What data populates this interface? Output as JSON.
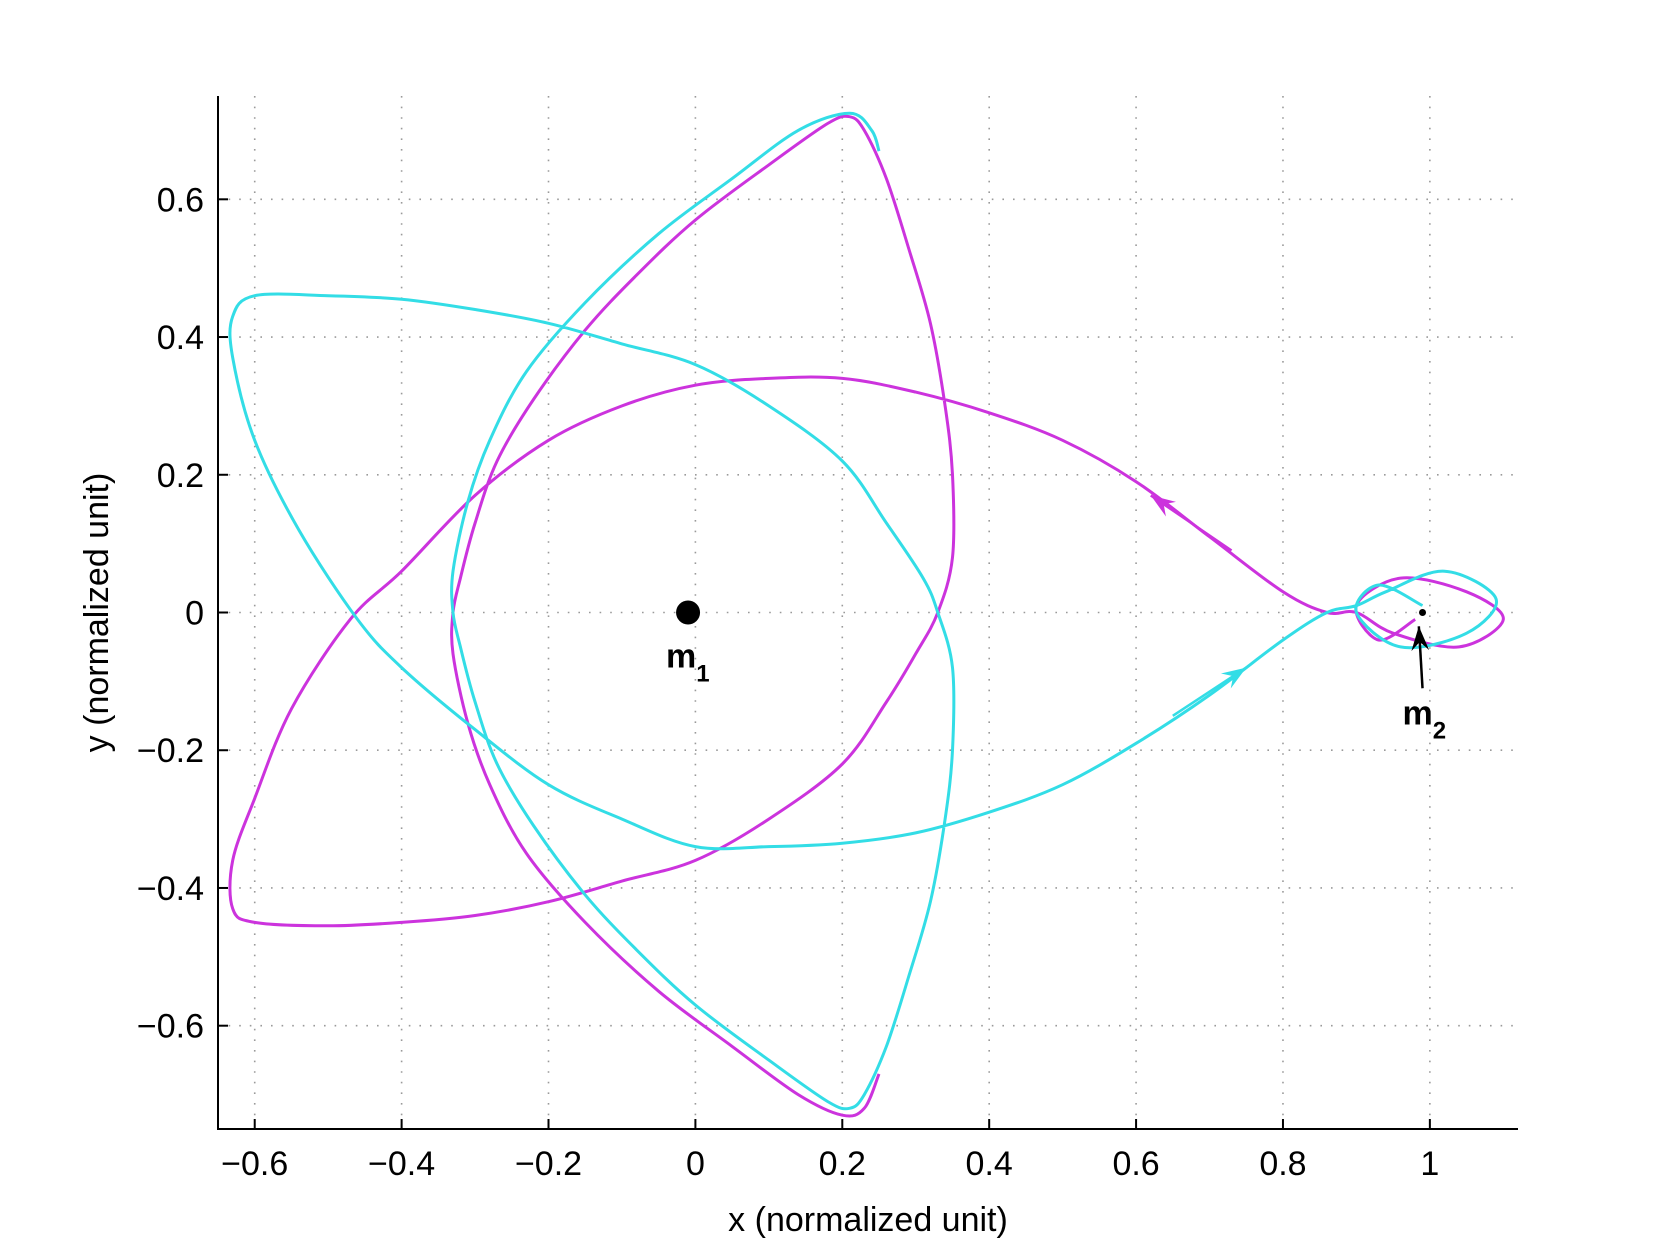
{
  "chart_data": {
    "type": "line",
    "title": "",
    "xlabel": "x (normalized unit)",
    "ylabel": "y (normalized unit)",
    "xlim": [
      -0.65,
      1.12
    ],
    "ylim": [
      -0.75,
      0.75
    ],
    "grid": true,
    "x_ticks": [
      -0.6,
      -0.4,
      -0.2,
      0,
      0.2,
      0.4,
      0.6,
      0.8,
      1
    ],
    "x_tick_labels": [
      "−0.6",
      "−0.4",
      "−0.2",
      "0",
      "0.2",
      "0.4",
      "0.6",
      "0.8",
      "1"
    ],
    "y_ticks": [
      0.6,
      0.4,
      0.2,
      0,
      -0.2,
      -0.4,
      -0.6
    ],
    "y_tick_labels": [
      "0.6",
      "0.4",
      "0.2",
      "0",
      "−0.2",
      "−0.4",
      "−0.6"
    ],
    "series": [
      {
        "color": "#cc33dd",
        "points": [
          [
            0.98,
            -0.01
          ],
          [
            0.93,
            -0.04
          ],
          [
            0.9,
            0.01
          ],
          [
            0.96,
            0.05
          ],
          [
            1.05,
            0.03
          ],
          [
            1.1,
            -0.01
          ],
          [
            1.04,
            -0.05
          ],
          [
            0.95,
            -0.03
          ],
          [
            0.9,
            0.0
          ],
          [
            0.86,
            0.0
          ],
          [
            0.8,
            0.03
          ],
          [
            0.7,
            0.11
          ],
          [
            0.6,
            0.19
          ],
          [
            0.5,
            0.25
          ],
          [
            0.4,
            0.29
          ],
          [
            0.3,
            0.32
          ],
          [
            0.2,
            0.34
          ],
          [
            0.1,
            0.34
          ],
          [
            0.0,
            0.33
          ],
          [
            -0.1,
            0.3
          ],
          [
            -0.2,
            0.25
          ],
          [
            -0.3,
            0.17
          ],
          [
            -0.4,
            0.06
          ],
          [
            -0.47,
            -0.01
          ],
          [
            -0.55,
            -0.14
          ],
          [
            -0.6,
            -0.27
          ],
          [
            -0.63,
            -0.36
          ],
          [
            -0.63,
            -0.43
          ],
          [
            -0.6,
            -0.45
          ],
          [
            -0.5,
            -0.455
          ],
          [
            -0.4,
            -0.45
          ],
          [
            -0.3,
            -0.44
          ],
          [
            -0.2,
            -0.42
          ],
          [
            -0.1,
            -0.39
          ],
          [
            0.0,
            -0.36
          ],
          [
            0.1,
            -0.3
          ],
          [
            0.2,
            -0.22
          ],
          [
            0.26,
            -0.13
          ],
          [
            0.3,
            -0.06
          ],
          [
            0.33,
            0.0
          ],
          [
            0.35,
            0.08
          ],
          [
            0.35,
            0.2
          ],
          [
            0.34,
            0.3
          ],
          [
            0.32,
            0.42
          ],
          [
            0.29,
            0.53
          ],
          [
            0.26,
            0.63
          ],
          [
            0.23,
            0.7
          ],
          [
            0.21,
            0.72
          ],
          [
            0.18,
            0.71
          ],
          [
            0.1,
            0.65
          ],
          [
            0.0,
            0.57
          ],
          [
            -0.08,
            0.49
          ],
          [
            -0.15,
            0.41
          ],
          [
            -0.22,
            0.31
          ],
          [
            -0.27,
            0.22
          ],
          [
            -0.3,
            0.13
          ],
          [
            -0.32,
            0.05
          ],
          [
            -0.33,
            0.0
          ],
          [
            -0.33,
            -0.06
          ],
          [
            -0.31,
            -0.16
          ],
          [
            -0.28,
            -0.25
          ],
          [
            -0.23,
            -0.35
          ],
          [
            -0.15,
            -0.45
          ],
          [
            -0.05,
            -0.55
          ],
          [
            0.05,
            -0.63
          ],
          [
            0.14,
            -0.7
          ],
          [
            0.2,
            -0.73
          ],
          [
            0.23,
            -0.72
          ],
          [
            0.25,
            -0.67
          ]
        ]
      },
      {
        "color": "#33dde6",
        "points": [
          [
            0.99,
            0.01
          ],
          [
            0.93,
            0.04
          ],
          [
            0.9,
            0.0
          ],
          [
            0.96,
            -0.05
          ],
          [
            1.05,
            -0.03
          ],
          [
            1.09,
            0.02
          ],
          [
            1.02,
            0.06
          ],
          [
            0.94,
            0.03
          ],
          [
            0.9,
            0.01
          ],
          [
            0.86,
            0.0
          ],
          [
            0.8,
            -0.04
          ],
          [
            0.7,
            -0.12
          ],
          [
            0.6,
            -0.19
          ],
          [
            0.5,
            -0.25
          ],
          [
            0.4,
            -0.29
          ],
          [
            0.3,
            -0.32
          ],
          [
            0.2,
            -0.335
          ],
          [
            0.1,
            -0.34
          ],
          [
            0.0,
            -0.34
          ],
          [
            -0.1,
            -0.3
          ],
          [
            -0.2,
            -0.25
          ],
          [
            -0.3,
            -0.17
          ],
          [
            -0.4,
            -0.08
          ],
          [
            -0.46,
            -0.01
          ],
          [
            -0.54,
            0.12
          ],
          [
            -0.6,
            0.25
          ],
          [
            -0.63,
            0.37
          ],
          [
            -0.63,
            0.43
          ],
          [
            -0.6,
            0.46
          ],
          [
            -0.5,
            0.46
          ],
          [
            -0.4,
            0.455
          ],
          [
            -0.3,
            0.44
          ],
          [
            -0.2,
            0.42
          ],
          [
            -0.1,
            0.39
          ],
          [
            0.0,
            0.36
          ],
          [
            0.1,
            0.3
          ],
          [
            0.2,
            0.22
          ],
          [
            0.26,
            0.13
          ],
          [
            0.31,
            0.05
          ],
          [
            0.33,
            0.0
          ],
          [
            0.35,
            -0.08
          ],
          [
            0.35,
            -0.2
          ],
          [
            0.34,
            -0.3
          ],
          [
            0.32,
            -0.42
          ],
          [
            0.29,
            -0.53
          ],
          [
            0.26,
            -0.63
          ],
          [
            0.23,
            -0.7
          ],
          [
            0.21,
            -0.72
          ],
          [
            0.18,
            -0.71
          ],
          [
            0.1,
            -0.65
          ],
          [
            0.0,
            -0.57
          ],
          [
            -0.08,
            -0.49
          ],
          [
            -0.15,
            -0.41
          ],
          [
            -0.22,
            -0.31
          ],
          [
            -0.27,
            -0.22
          ],
          [
            -0.3,
            -0.13
          ],
          [
            -0.32,
            -0.05
          ],
          [
            -0.33,
            0.0
          ],
          [
            -0.33,
            0.06
          ],
          [
            -0.31,
            0.16
          ],
          [
            -0.28,
            0.25
          ],
          [
            -0.23,
            0.35
          ],
          [
            -0.15,
            0.45
          ],
          [
            -0.05,
            0.55
          ],
          [
            0.05,
            0.63
          ],
          [
            0.14,
            0.7
          ],
          [
            0.21,
            0.725
          ],
          [
            0.24,
            0.7
          ],
          [
            0.25,
            0.67
          ]
        ]
      }
    ],
    "arrows": [
      {
        "color": "#cc33dd",
        "from": [
          0.73,
          0.09
        ],
        "to": [
          0.62,
          0.17
        ]
      },
      {
        "color": "#33dde6",
        "from": [
          0.65,
          -0.15
        ],
        "to": [
          0.75,
          -0.08
        ]
      },
      {
        "color": "#000000",
        "from": [
          0.99,
          -0.11
        ],
        "to": [
          0.985,
          -0.02
        ]
      }
    ],
    "points": [
      {
        "name": "m1",
        "x": -0.01,
        "y": 0.0,
        "label": "m",
        "subscript": "1"
      },
      {
        "name": "m2",
        "x": 0.99,
        "y": 0.0,
        "label": "m",
        "subscript": "2"
      }
    ]
  }
}
